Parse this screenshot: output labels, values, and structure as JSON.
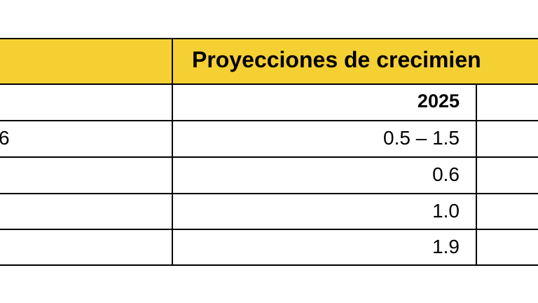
{
  "table": {
    "header_title": "Proyecciones de crecimien",
    "year_column": "2025",
    "left_column_fragment": "6",
    "rows": [
      "0.5 – 1.5",
      "0.6",
      "1.0",
      "1.9"
    ]
  },
  "colors": {
    "header_background": "#F5D033",
    "border": "#000000"
  }
}
